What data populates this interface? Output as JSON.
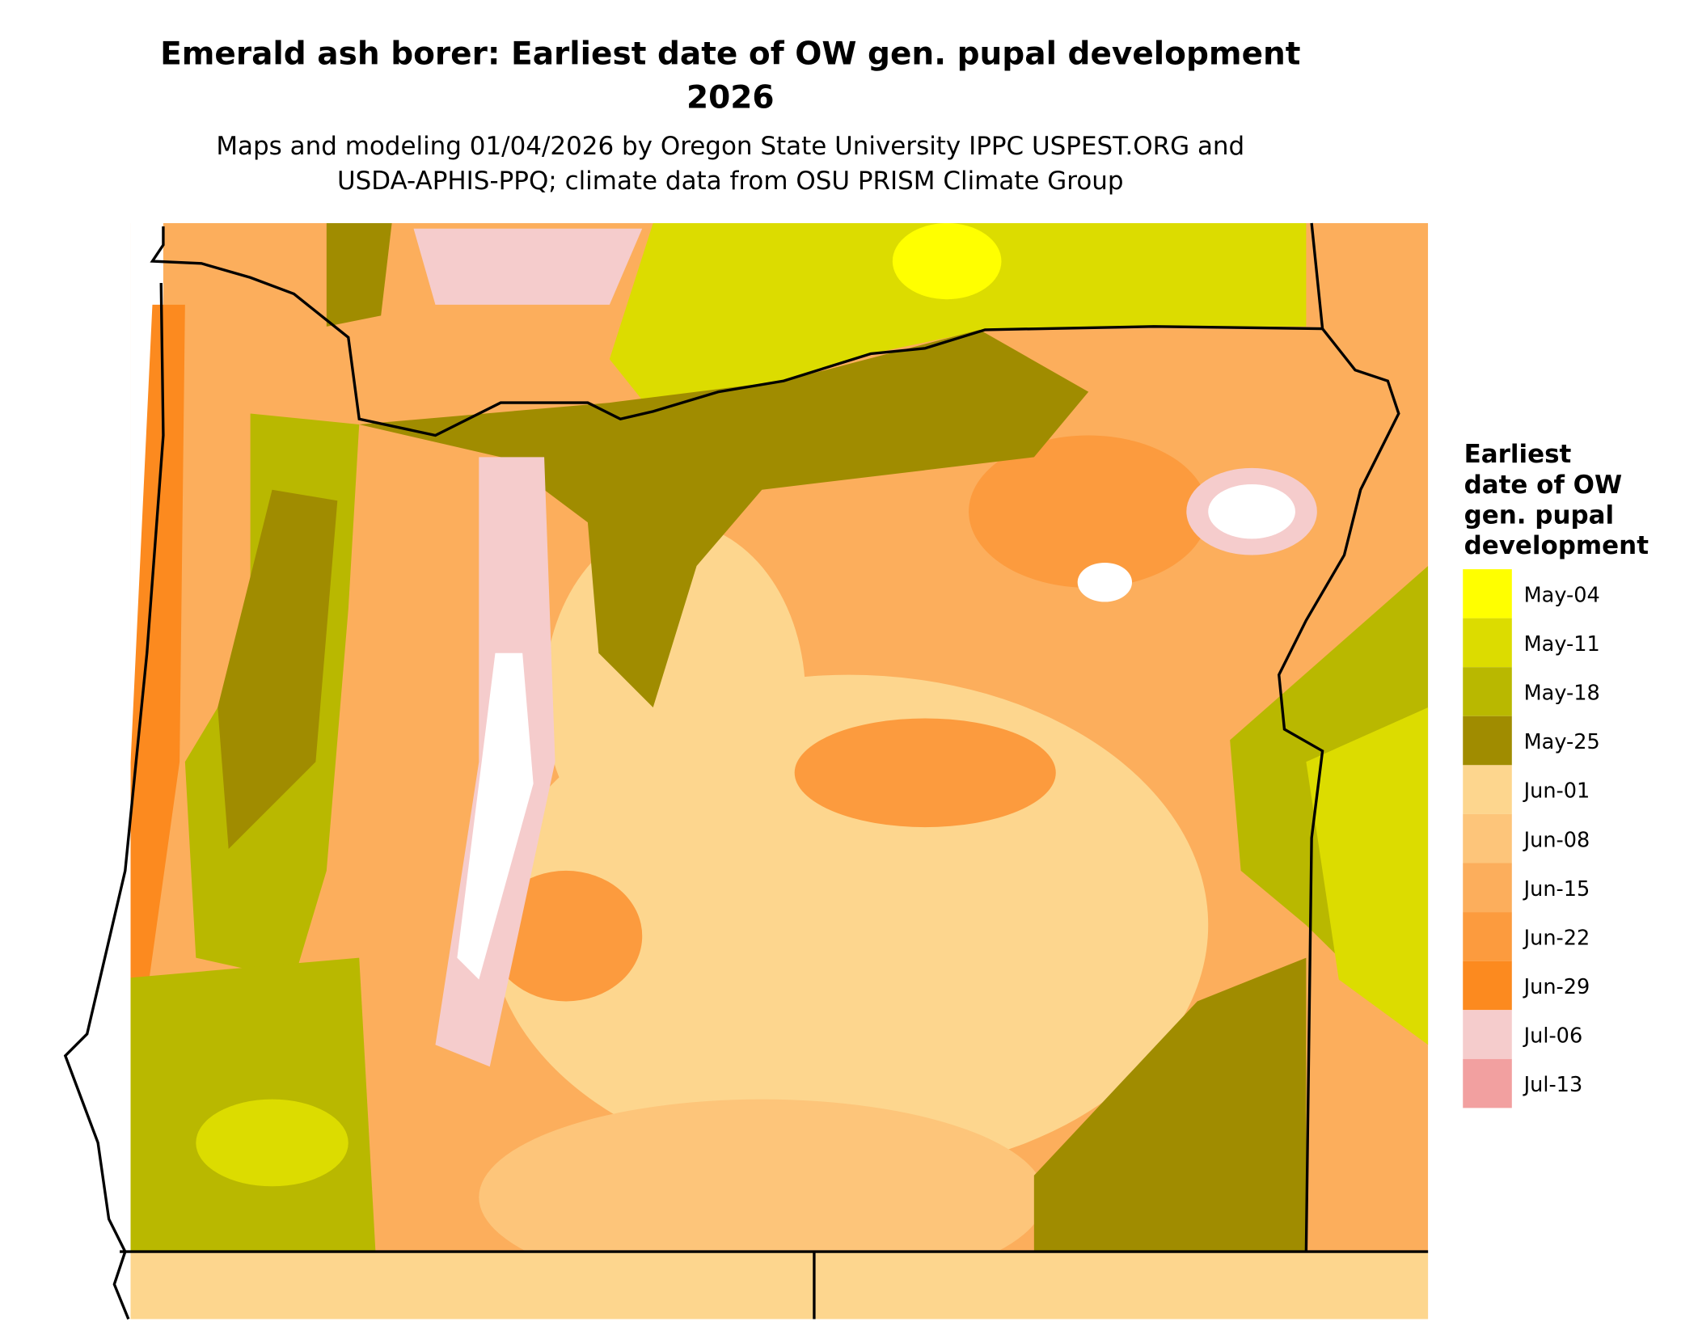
{
  "title": [
    "Emerald ash borer: Earliest date of OW gen. pupal development",
    "2026"
  ],
  "subtitle": [
    "Maps and modeling 01/04/2026 by Oregon State University IPPC USPEST.ORG and",
    "USDA-APHIS-PPQ; climate data from OSU PRISM Climate Group"
  ],
  "legend": {
    "title": [
      "Earliest",
      "date of OW",
      "gen. pupal",
      "development"
    ],
    "items": [
      {
        "label": "May-04",
        "color": "#ffff00"
      },
      {
        "label": "May-11",
        "color": "#dcdc00"
      },
      {
        "label": "May-18",
        "color": "#b9b800"
      },
      {
        "label": "May-25",
        "color": "#a08c00"
      },
      {
        "label": "Jun-01",
        "color": "#fdd68e"
      },
      {
        "label": "Jun-08",
        "color": "#fdc57a"
      },
      {
        "label": "Jun-15",
        "color": "#fcae5c"
      },
      {
        "label": "Jun-22",
        "color": "#fc9b3e"
      },
      {
        "label": "Jun-29",
        "color": "#fc8a1f"
      },
      {
        "label": "Jul-06",
        "color": "#f5cccc"
      },
      {
        "label": "Jul-13",
        "color": "#f2a0a0"
      }
    ]
  }
}
